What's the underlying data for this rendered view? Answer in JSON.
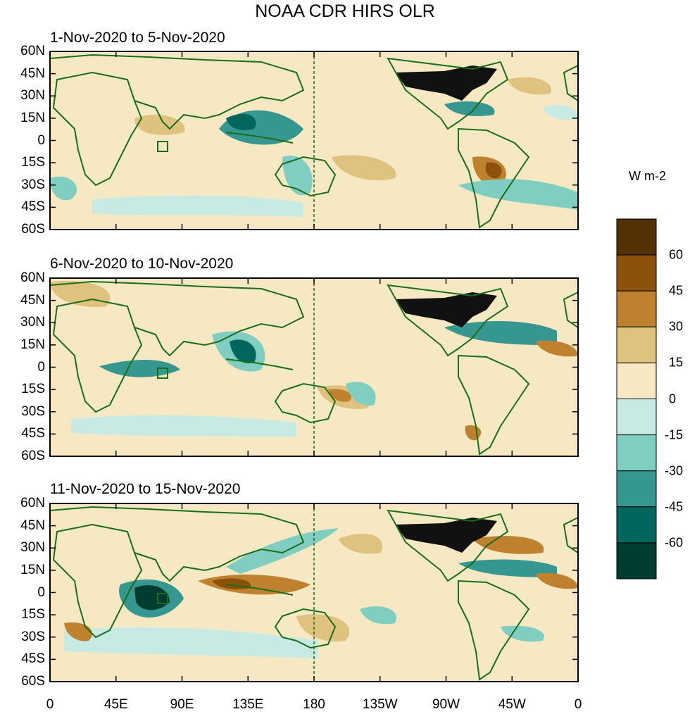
{
  "title": "NOAA CDR HIRS OLR",
  "panels": [
    {
      "label": "1-Nov-2020 to 5-Nov-2020"
    },
    {
      "label": "6-Nov-2020 to 10-Nov-2020"
    },
    {
      "label": "11-Nov-2020 to 15-Nov-2020"
    }
  ],
  "lat_labels": [
    "60N",
    "45N",
    "30N",
    "15N",
    "0",
    "15S",
    "30S",
    "45S",
    "60S"
  ],
  "lon_labels": [
    "0",
    "45E",
    "90E",
    "135E",
    "180",
    "135W",
    "90W",
    "45W",
    "0"
  ],
  "colorbar": {
    "units": "W m-2",
    "levels": [
      "60",
      "45",
      "30",
      "15",
      "0",
      "-15",
      "-30",
      "-45",
      "-60"
    ],
    "colors": [
      "#543005",
      "#8c510a",
      "#bf812d",
      "#dfc27d",
      "#f6e8c3",
      "#c7eae5",
      "#80cdc1",
      "#35978f",
      "#01665e",
      "#003c30"
    ]
  },
  "map": {
    "land_outline_color": "#1a6e1a",
    "land_fill_usa": "#111111",
    "dateline_style": "dashed"
  }
}
